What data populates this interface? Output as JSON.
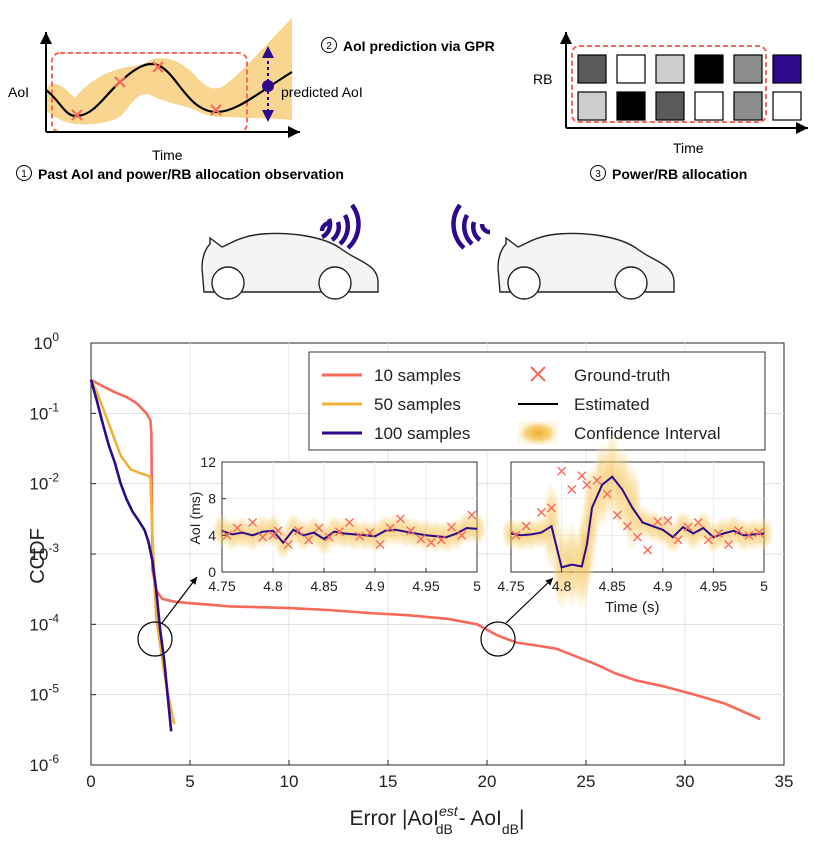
{
  "panel1": {
    "ylabel": "AoI",
    "xlabel": "Time",
    "annotation": "predicted AoI",
    "step_number": "1",
    "caption": "Past AoI and power/RB allocation observation"
  },
  "panel2": {
    "step_number": "2",
    "caption": "AoI prediction via GPR"
  },
  "panel3": {
    "ylabel": "RB",
    "xlabel": "Time",
    "step_number": "3",
    "caption": "Power/RB allocation",
    "grid_top_shades": [
      "#5a5a5a",
      "#ffffff",
      "#cdcdcd",
      "#000000",
      "#8c8c8c",
      "#2d0a8c"
    ],
    "grid_bottom_shades": [
      "#cdcdcd",
      "#000000",
      "#5a5a5a",
      "#ffffff",
      "#8c8c8c",
      "#ffffff"
    ]
  },
  "colors": {
    "red": "#f8695a",
    "gold": "#f0b33a",
    "navy": "#2d0a8c",
    "band": "#f5c65a",
    "dashed": "#f8695a"
  },
  "main_chart": {
    "ylabel": "CCDF",
    "xlabel_parts": {
      "error": "Error |AoI",
      "est": "est",
      "db1": "dB",
      "minus": " - AoI",
      "db2": "dB",
      "bar": "|"
    },
    "xticks": [
      "0",
      "5",
      "10",
      "15",
      "20",
      "25",
      "30",
      "35"
    ],
    "ytick_base": "10",
    "ytick_exponents": [
      "0",
      "-1",
      "-2",
      "-3",
      "-4",
      "-5",
      "-6"
    ],
    "legend": {
      "s10": "10 samples",
      "s50": "50 samples",
      "s100": "100 samples",
      "gt": "Ground-truth",
      "est": "Estimated",
      "ci": "Confidence Interval"
    }
  },
  "inset_left": {
    "ylabel": "AoI (ms)",
    "yticks": [
      "12",
      "8",
      "4",
      "0"
    ],
    "xticks": [
      "4.75",
      "4.8",
      "4.85",
      "4.9",
      "4.95",
      "5"
    ]
  },
  "inset_right": {
    "xlabel": "Time (s)",
    "xticks": [
      "4.75",
      "4.8",
      "4.85",
      "4.9",
      "4.95",
      "5"
    ]
  },
  "chart_data": {
    "type": "line",
    "ylabel": "CCDF",
    "yscale": "log",
    "xlim": [
      0,
      35
    ],
    "ylim": [
      1e-06,
      1
    ],
    "series": [
      {
        "name": "10 samples",
        "color": "#f8695a",
        "x": [
          0,
          0.5,
          1.2,
          1.8,
          2.3,
          2.8,
          3.0,
          3.05,
          3.1,
          3.3,
          3.6,
          4.2,
          5.0,
          6.0,
          7.0,
          8.5,
          10,
          12,
          14,
          16,
          18,
          19.5,
          20.5,
          21.5,
          22.5,
          23.5,
          24.5,
          25.5,
          26.5,
          27.5,
          29,
          30.5,
          32,
          33.8
        ],
        "y": [
          0.3,
          0.25,
          0.2,
          0.17,
          0.14,
          0.1,
          0.08,
          0.05,
          0.0006,
          0.0003,
          0.00023,
          0.00021,
          0.0002,
          0.00019,
          0.00018,
          0.000175,
          0.00017,
          0.00016,
          0.000145,
          0.000135,
          0.00012,
          0.0001,
          7e-05,
          5.5e-05,
          5e-05,
          4.5e-05,
          3.5e-05,
          2.7e-05,
          2e-05,
          1.6e-05,
          1.3e-05,
          1e-05,
          7.5e-06,
          4.5e-06
        ]
      },
      {
        "name": "50 samples",
        "color": "#f0b33a",
        "x": [
          0,
          0.3,
          0.7,
          1.1,
          1.5,
          2.0,
          2.5,
          2.9,
          3.0,
          3.1,
          3.2,
          3.3,
          3.5,
          3.7,
          3.9,
          4.2
        ],
        "y": [
          0.3,
          0.2,
          0.1,
          0.05,
          0.025,
          0.016,
          0.014,
          0.013,
          0.012,
          0.002,
          0.0004,
          0.00012,
          5e-05,
          2e-05,
          1e-05,
          3.8e-06
        ]
      },
      {
        "name": "100 samples",
        "color": "#2d0a8c",
        "x": [
          0,
          0.3,
          0.6,
          0.9,
          1.2,
          1.5,
          1.8,
          2.1,
          2.4,
          2.7,
          2.9,
          3.1,
          3.3,
          3.5,
          3.7,
          3.9,
          4.05
        ],
        "y": [
          0.3,
          0.15,
          0.07,
          0.035,
          0.02,
          0.01,
          0.006,
          0.004,
          0.003,
          0.0022,
          0.0015,
          0.0008,
          0.0003,
          8e-05,
          3e-05,
          8e-06,
          3e-06
        ]
      }
    ],
    "insets": [
      {
        "xlim": [
          4.75,
          5.0
        ],
        "ylim": [
          0,
          12
        ],
        "estimated": {
          "x": [
            4.75,
            4.76,
            4.77,
            4.78,
            4.79,
            4.8,
            4.81,
            4.82,
            4.83,
            4.84,
            4.85,
            4.86,
            4.87,
            4.88,
            4.89,
            4.9,
            4.91,
            4.92,
            4.93,
            4.94,
            4.95,
            4.96,
            4.97,
            4.98,
            4.99,
            5.0
          ],
          "y": [
            4.5,
            4.1,
            4.3,
            4.0,
            4.4,
            4.5,
            3.2,
            4.6,
            4.0,
            4.3,
            3.6,
            4.4,
            4.2,
            4.1,
            4.0,
            3.9,
            4.5,
            4.6,
            4.4,
            4.2,
            4.0,
            3.9,
            3.8,
            4.2,
            4.8,
            4.7
          ]
        },
        "ground_truth": {
          "x": [
            4.755,
            4.765,
            4.78,
            4.79,
            4.8,
            4.805,
            4.815,
            4.825,
            4.835,
            4.845,
            4.855,
            4.865,
            4.875,
            4.885,
            4.895,
            4.905,
            4.915,
            4.925,
            4.935,
            4.945,
            4.955,
            4.965,
            4.975,
            4.985,
            4.995
          ],
          "y": [
            4.0,
            4.8,
            5.4,
            3.8,
            4.0,
            4.5,
            3.0,
            4.5,
            3.5,
            4.8,
            3.8,
            4.4,
            5.4,
            3.9,
            4.3,
            3.0,
            4.8,
            5.8,
            4.5,
            3.6,
            3.2,
            3.5,
            4.9,
            4.0,
            6.2
          ]
        }
      },
      {
        "xlim": [
          4.75,
          5.0
        ],
        "ylim": [
          0,
          12
        ],
        "estimated": {
          "x": [
            4.75,
            4.76,
            4.77,
            4.78,
            4.79,
            4.8,
            4.81,
            4.82,
            4.825,
            4.83,
            4.84,
            4.85,
            4.86,
            4.87,
            4.88,
            4.89,
            4.9,
            4.91,
            4.92,
            4.93,
            4.94,
            4.95,
            4.96,
            4.97,
            4.98,
            4.99,
            5.0
          ],
          "y": [
            4.2,
            4.0,
            4.1,
            4.3,
            5.0,
            0.5,
            0.8,
            0.6,
            3.0,
            7.0,
            9.5,
            10.4,
            9.0,
            7.0,
            5.4,
            5.0,
            4.6,
            3.8,
            4.9,
            4.2,
            4.8,
            3.8,
            4.2,
            4.5,
            4.0,
            4.1,
            4.2
          ]
        },
        "ground_truth": {
          "x": [
            4.755,
            4.765,
            4.78,
            4.79,
            4.8,
            4.81,
            4.82,
            4.825,
            4.835,
            4.845,
            4.855,
            4.865,
            4.875,
            4.885,
            4.895,
            4.905,
            4.915,
            4.925,
            4.935,
            4.945,
            4.955,
            4.965,
            4.975,
            4.985,
            4.995
          ],
          "y": [
            4.0,
            5.0,
            6.5,
            7.0,
            11.0,
            9.0,
            10.5,
            9.5,
            10.0,
            8.5,
            6.2,
            5.0,
            3.8,
            2.4,
            5.5,
            5.6,
            3.5,
            4.9,
            5.4,
            3.5,
            4.2,
            3.0,
            4.5,
            4.0,
            4.3
          ]
        }
      }
    ]
  }
}
